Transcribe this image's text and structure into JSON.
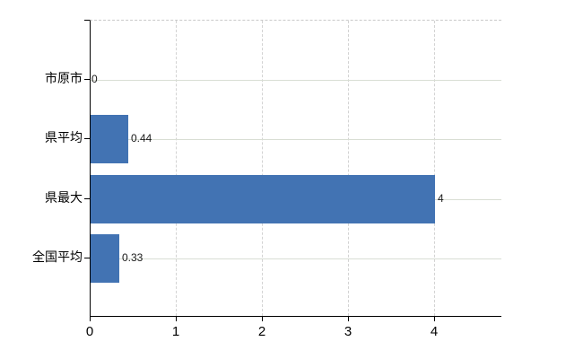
{
  "chart_data": {
    "type": "bar",
    "orientation": "horizontal",
    "categories": [
      "市原市",
      "県平均",
      "県最大",
      "全国平均"
    ],
    "values": [
      0,
      0.44,
      4,
      0.33
    ],
    "value_labels": [
      "0",
      "0.44",
      "4",
      "0.33"
    ],
    "series": [
      {
        "name": "",
        "values": [
          0,
          0.44,
          4,
          0.33
        ]
      }
    ],
    "x_tick_labels": [
      "0",
      "1",
      "2",
      "3",
      "4"
    ],
    "x_ticks": [
      0,
      1,
      2,
      3,
      4
    ],
    "xlim": [
      0,
      4.78
    ],
    "title": "",
    "xlabel": "",
    "ylabel": "",
    "grid": "on",
    "legend": "none",
    "bar_color": "#4273b3",
    "axis_color": "#000000",
    "vgrid_color": "#d3d3d3",
    "hgrid_color": "#d9ded4",
    "top_border_color": "#c9c9c9",
    "label_color": "#000000",
    "value_label_color": "#1a1a1a",
    "background_color": "#ffffff"
  }
}
